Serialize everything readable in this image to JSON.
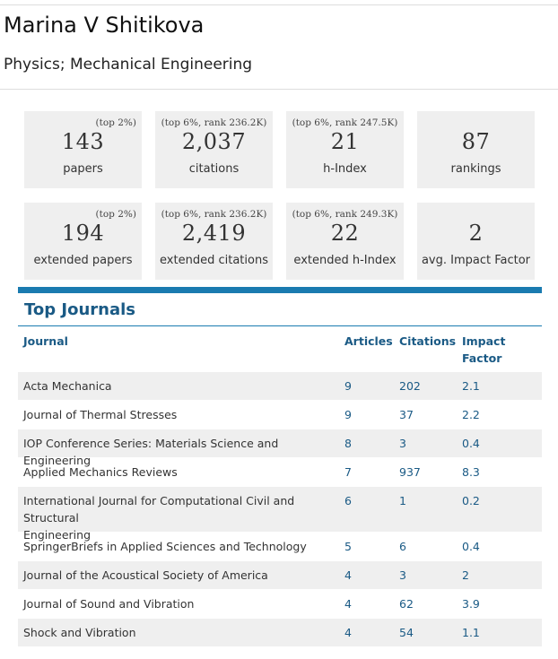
{
  "profile": {
    "name": "Marina V Shitikova",
    "fields": "Physics; Mechanical Engineering"
  },
  "stats": [
    {
      "rank": "(top 2%)",
      "value": "143",
      "label": "papers"
    },
    {
      "rank": "(top 6%, rank 236.2K)",
      "value": "2,037",
      "label": "citations"
    },
    {
      "rank": "(top 6%, rank 247.5K)",
      "value": "21",
      "label": "h-Index"
    },
    {
      "rank": "",
      "value": "87",
      "label": "rankings"
    },
    {
      "rank": "(top 2%)",
      "value": "194",
      "label": "extended papers"
    },
    {
      "rank": "(top 6%, rank 236.2K)",
      "value": "2,419",
      "label": "extended citations"
    },
    {
      "rank": "(top 6%, rank 249.3K)",
      "value": "22",
      "label": "extended h-Index"
    },
    {
      "rank": "",
      "value": "2",
      "label": "avg. Impact Factor"
    }
  ],
  "journals": {
    "title": "Top Journals",
    "headers": {
      "journal": "Journal",
      "articles": "Articles",
      "citations": "Citations",
      "impact_line1": "Impact",
      "impact_line2": "Factor"
    },
    "rows": [
      {
        "journal": "Acta Mechanica",
        "articles": "9",
        "citations": "202",
        "impact": "2.1"
      },
      {
        "journal": "Journal of Thermal Stresses",
        "articles": "9",
        "citations": "37",
        "impact": "2.2"
      },
      {
        "journal": "IOP Conference Series: Materials Science and Engineering",
        "articles": "8",
        "citations": "3",
        "impact": "0.4"
      },
      {
        "journal": "Applied Mechanics Reviews",
        "articles": "7",
        "citations": "937",
        "impact": "8.3"
      },
      {
        "journal_line1": "International Journal for Computational Civil and Structural",
        "journal_line2": "Engineering",
        "articles": "6",
        "citations": "1",
        "impact": "0.2"
      },
      {
        "journal": "SpringerBriefs in Applied Sciences and Technology",
        "articles": "5",
        "citations": "6",
        "impact": "0.4"
      },
      {
        "journal": "Journal of the Acoustical Society of America",
        "articles": "4",
        "citations": "3",
        "impact": "2"
      },
      {
        "journal": "Journal of Sound and Vibration",
        "articles": "4",
        "citations": "62",
        "impact": "3.9"
      },
      {
        "journal": "Shock and Vibration",
        "articles": "4",
        "citations": "54",
        "impact": "1.1"
      }
    ]
  }
}
